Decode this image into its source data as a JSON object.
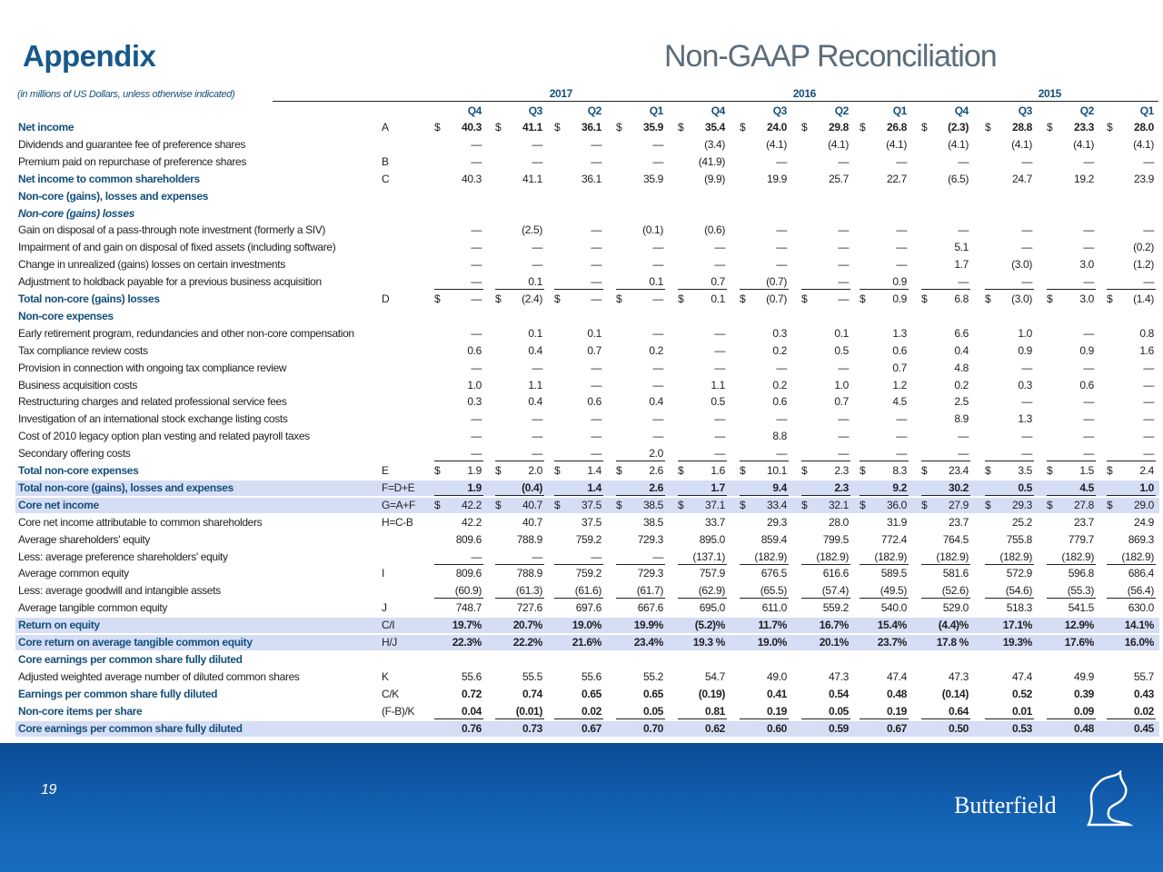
{
  "header": {
    "title": "Appendix",
    "subtitle": "Non-GAAP Reconciliation"
  },
  "footer": {
    "page": "19",
    "brand": "Butterfield"
  },
  "table": {
    "note": "(in millions of US Dollars, unless otherwise indicated)",
    "currency": "$",
    "years": [
      "2017",
      "2016",
      "2015"
    ],
    "quarters": [
      "Q4",
      "Q3",
      "Q2",
      "Q1",
      "Q4",
      "Q3",
      "Q2",
      "Q1",
      "Q4",
      "Q3",
      "Q2",
      "Q1"
    ],
    "rows": [
      {
        "label": "Net income",
        "code": "A",
        "total": true,
        "bold_values": true,
        "dollar": true,
        "values": [
          "40.3",
          "41.1",
          "36.1",
          "35.9",
          "35.4",
          "24.0",
          "29.8",
          "26.8",
          "(2.3)",
          "28.8",
          "23.3",
          "28.0"
        ]
      },
      {
        "label": "Dividends and guarantee fee of preference shares",
        "values": [
          "—",
          "—",
          "—",
          "—",
          "(3.4)",
          "(4.1)",
          "(4.1)",
          "(4.1)",
          "(4.1)",
          "(4.1)",
          "(4.1)",
          "(4.1)"
        ]
      },
      {
        "label": "Premium paid on repurchase of preference shares",
        "code": "B",
        "values": [
          "—",
          "—",
          "—",
          "—",
          "(41.9)",
          "—",
          "—",
          "—",
          "—",
          "—",
          "—",
          "—"
        ]
      },
      {
        "label": "Net income to common shareholders",
        "code": "C",
        "total": true,
        "values": [
          "40.3",
          "41.1",
          "36.1",
          "35.9",
          "(9.9)",
          "19.9",
          "25.7",
          "22.7",
          "(6.5)",
          "24.7",
          "19.2",
          "23.9"
        ]
      },
      {
        "label": "Non-core (gains), losses and expenses",
        "total": true
      },
      {
        "label": "Non-core (gains) losses",
        "total": true,
        "italic": true
      },
      {
        "label": "Gain on disposal of a pass-through note investment (formerly a SIV)",
        "values": [
          "—",
          "(2.5)",
          "—",
          "(0.1)",
          "(0.6)",
          "—",
          "—",
          "—",
          "—",
          "—",
          "—",
          "—"
        ]
      },
      {
        "label": "Impairment of and gain on disposal of fixed assets (including software)",
        "values": [
          "—",
          "—",
          "—",
          "—",
          "—",
          "—",
          "—",
          "—",
          "5.1",
          "—",
          "—",
          "(0.2)"
        ]
      },
      {
        "label": "Change in unrealized (gains) losses on certain investments",
        "values": [
          "—",
          "—",
          "—",
          "—",
          "—",
          "—",
          "—",
          "—",
          "1.7",
          "(3.0)",
          "3.0",
          "(1.2)"
        ]
      },
      {
        "label": "Adjustment to holdback payable for a previous business acquisition",
        "underline": true,
        "values": [
          "—",
          "0.1",
          "—",
          "0.1",
          "0.7",
          "(0.7)",
          "—",
          "0.9",
          "—",
          "—",
          "—",
          "—"
        ]
      },
      {
        "label": "Total non-core (gains) losses",
        "code": "D",
        "total": true,
        "dollar": true,
        "values": [
          "—",
          "(2.4)",
          "—",
          "—",
          "0.1",
          "(0.7)",
          "—",
          "0.9",
          "6.8",
          "(3.0)",
          "3.0",
          "(1.4)"
        ]
      },
      {
        "label": "Non-core expenses",
        "total": true
      },
      {
        "label": "Early retirement program, redundancies and other non-core compensation",
        "values": [
          "—",
          "0.1",
          "0.1",
          "—",
          "—",
          "0.3",
          "0.1",
          "1.3",
          "6.6",
          "1.0",
          "—",
          "0.8"
        ]
      },
      {
        "label": "Tax compliance review costs",
        "values": [
          "0.6",
          "0.4",
          "0.7",
          "0.2",
          "—",
          "0.2",
          "0.5",
          "0.6",
          "0.4",
          "0.9",
          "0.9",
          "1.6"
        ]
      },
      {
        "label": "Provision in connection with ongoing tax compliance review",
        "values": [
          "—",
          "—",
          "—",
          "—",
          "—",
          "—",
          "—",
          "0.7",
          "4.8",
          "—",
          "—",
          "—"
        ]
      },
      {
        "label": "Business acquisition costs",
        "values": [
          "1.0",
          "1.1",
          "—",
          "—",
          "1.1",
          "0.2",
          "1.0",
          "1.2",
          "0.2",
          "0.3",
          "0.6",
          "—"
        ]
      },
      {
        "label": "Restructuring charges and related professional service fees",
        "values": [
          "0.3",
          "0.4",
          "0.6",
          "0.4",
          "0.5",
          "0.6",
          "0.7",
          "4.5",
          "2.5",
          "—",
          "—",
          "—"
        ]
      },
      {
        "label": "Investigation of an international stock exchange listing costs",
        "values": [
          "—",
          "—",
          "—",
          "—",
          "—",
          "—",
          "—",
          "—",
          "8.9",
          "1.3",
          "—",
          "—"
        ]
      },
      {
        "label": "Cost of 2010 legacy option plan vesting and related payroll taxes",
        "values": [
          "—",
          "—",
          "—",
          "—",
          "—",
          "8.8",
          "—",
          "—",
          "—",
          "—",
          "—",
          "—"
        ]
      },
      {
        "label": "Secondary offering costs",
        "underline": true,
        "values": [
          "—",
          "—",
          "—",
          "2.0",
          "—",
          "—",
          "—",
          "—",
          "—",
          "—",
          "—",
          "—"
        ]
      },
      {
        "label": "Total non-core expenses",
        "code": "E",
        "total": true,
        "dollar": true,
        "values": [
          "1.9",
          "2.0",
          "1.4",
          "2.6",
          "1.6",
          "10.1",
          "2.3",
          "8.3",
          "23.4",
          "3.5",
          "1.5",
          "2.4"
        ]
      },
      {
        "label": "Total non-core (gains), losses and expenses",
        "code": "F=D+E",
        "total": true,
        "highlight": true,
        "bold_values": true,
        "underline": true,
        "values": [
          "1.9",
          "(0.4)",
          "1.4",
          "2.6",
          "1.7",
          "9.4",
          "2.3",
          "9.2",
          "30.2",
          "0.5",
          "4.5",
          "1.0"
        ]
      },
      {
        "label": "Core net income",
        "code": "G=A+F",
        "total": true,
        "highlight": true,
        "dollar": true,
        "values": [
          "42.2",
          "40.7",
          "37.5",
          "38.5",
          "37.1",
          "33.4",
          "32.1",
          "36.0",
          "27.9",
          "29.3",
          "27.8",
          "29.0"
        ]
      },
      {
        "label": "Core net income attributable to common shareholders",
        "code": "H=C-B",
        "values": [
          "42.2",
          "40.7",
          "37.5",
          "38.5",
          "33.7",
          "29.3",
          "28.0",
          "31.9",
          "23.7",
          "25.2",
          "23.7",
          "24.9"
        ]
      },
      {
        "label": "Average shareholders' equity",
        "values": [
          "809.6",
          "788.9",
          "759.2",
          "729.3",
          "895.0",
          "859.4",
          "799.5",
          "772.4",
          "764.5",
          "755.8",
          "779.7",
          "869.3"
        ]
      },
      {
        "label": "Less: average preference shareholders' equity",
        "underline": true,
        "values": [
          "—",
          "—",
          "—",
          "—",
          "(137.1)",
          "(182.9)",
          "(182.9)",
          "(182.9)",
          "(182.9)",
          "(182.9)",
          "(182.9)",
          "(182.9)"
        ]
      },
      {
        "label": "Average common equity",
        "code": "I",
        "values": [
          "809.6",
          "788.9",
          "759.2",
          "729.3",
          "757.9",
          "676.5",
          "616.6",
          "589.5",
          "581.6",
          "572.9",
          "596.8",
          "686.4"
        ]
      },
      {
        "label": "Less: average goodwill and intangible assets",
        "underline": true,
        "values": [
          "(60.9)",
          "(61.3)",
          "(61.6)",
          "(61.7)",
          "(62.9)",
          "(65.5)",
          "(57.4)",
          "(49.5)",
          "(52.6)",
          "(54.6)",
          "(55.3)",
          "(56.4)"
        ]
      },
      {
        "label": "Average tangible common equity",
        "code": "J",
        "values": [
          "748.7",
          "727.6",
          "697.6",
          "667.6",
          "695.0",
          "611.0",
          "559.2",
          "540.0",
          "529.0",
          "518.3",
          "541.5",
          "630.0"
        ]
      },
      {
        "label": "Return on equity",
        "code": "C/I",
        "total": true,
        "highlight": true,
        "bold_values": true,
        "values": [
          "19.7%",
          "20.7%",
          "19.0%",
          "19.9%",
          "(5.2)%",
          "11.7%",
          "16.7%",
          "15.4%",
          "(4.4)%",
          "17.1%",
          "12.9%",
          "14.1%"
        ]
      },
      {
        "label": "Core return on average tangible common equity",
        "code": "H/J",
        "total": true,
        "highlight": true,
        "bold_values": true,
        "values": [
          "22.3%",
          "22.2%",
          "21.6%",
          "23.4%",
          "19.3 %",
          "19.0%",
          "20.1%",
          "23.7%",
          "17.8 %",
          "19.3%",
          "17.6%",
          "16.0%"
        ]
      },
      {
        "label": "Core earnings per common share fully diluted",
        "total": true
      },
      {
        "label": "Adjusted weighted average number of diluted common shares",
        "code": "K",
        "values": [
          "55.6",
          "55.5",
          "55.6",
          "55.2",
          "54.7",
          "49.0",
          "47.3",
          "47.4",
          "47.3",
          "47.4",
          "49.9",
          "55.7"
        ]
      },
      {
        "label": "Earnings per common share fully diluted",
        "code": "C/K",
        "total": true,
        "bold_values": true,
        "values": [
          "0.72",
          "0.74",
          "0.65",
          "0.65",
          "(0.19)",
          "0.41",
          "0.54",
          "0.48",
          "(0.14)",
          "0.52",
          "0.39",
          "0.43"
        ]
      },
      {
        "label": "Non-core items per share",
        "code": "(F-B)/K",
        "total": true,
        "bold_values": true,
        "underline": true,
        "values": [
          "0.04",
          "(0.01)",
          "0.02",
          "0.05",
          "0.81",
          "0.19",
          "0.05",
          "0.19",
          "0.64",
          "0.01",
          "0.09",
          "0.02"
        ]
      },
      {
        "label": "Core earnings per common share fully diluted",
        "total": true,
        "highlight": true,
        "bold_values": true,
        "values": [
          "0.76",
          "0.73",
          "0.67",
          "0.70",
          "0.62",
          "0.60",
          "0.59",
          "0.67",
          "0.50",
          "0.53",
          "0.48",
          "0.45"
        ]
      }
    ]
  }
}
